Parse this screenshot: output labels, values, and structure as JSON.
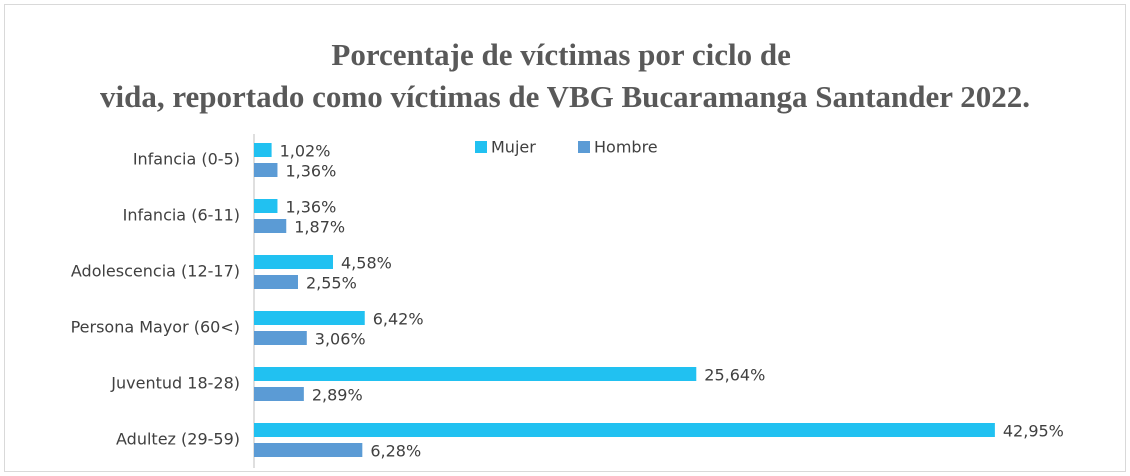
{
  "chart_data": {
    "type": "bar",
    "orientation": "horizontal",
    "title": "Porcentaje de víctimas por ciclo de vida, reportado como víctimas de VBG Bucaramanga Santander 2022.",
    "categories": [
      "Infancia (0-5)",
      "Infancia (6-11)",
      "Adolescencia (12-17)",
      "Persona Mayor (60<)",
      "Juventud 18-28)",
      "Adultez (29-59)"
    ],
    "series": [
      {
        "name": "Mujer",
        "color": "#21c1f1",
        "values": [
          1.02,
          1.36,
          4.58,
          6.42,
          25.64,
          42.95
        ],
        "value_labels": [
          "1,02%",
          "1,36%",
          "4,58%",
          "6,42%",
          "25,64%",
          "42,95%"
        ]
      },
      {
        "name": "Hombre",
        "color": "#5b9bd5",
        "values": [
          1.36,
          1.87,
          2.55,
          3.06,
          2.89,
          6.28
        ],
        "value_labels": [
          "1,36%",
          "1,87%",
          "2,55%",
          "3,06%",
          "2,89%",
          "6,28%"
        ]
      }
    ],
    "legend": "top"
  }
}
